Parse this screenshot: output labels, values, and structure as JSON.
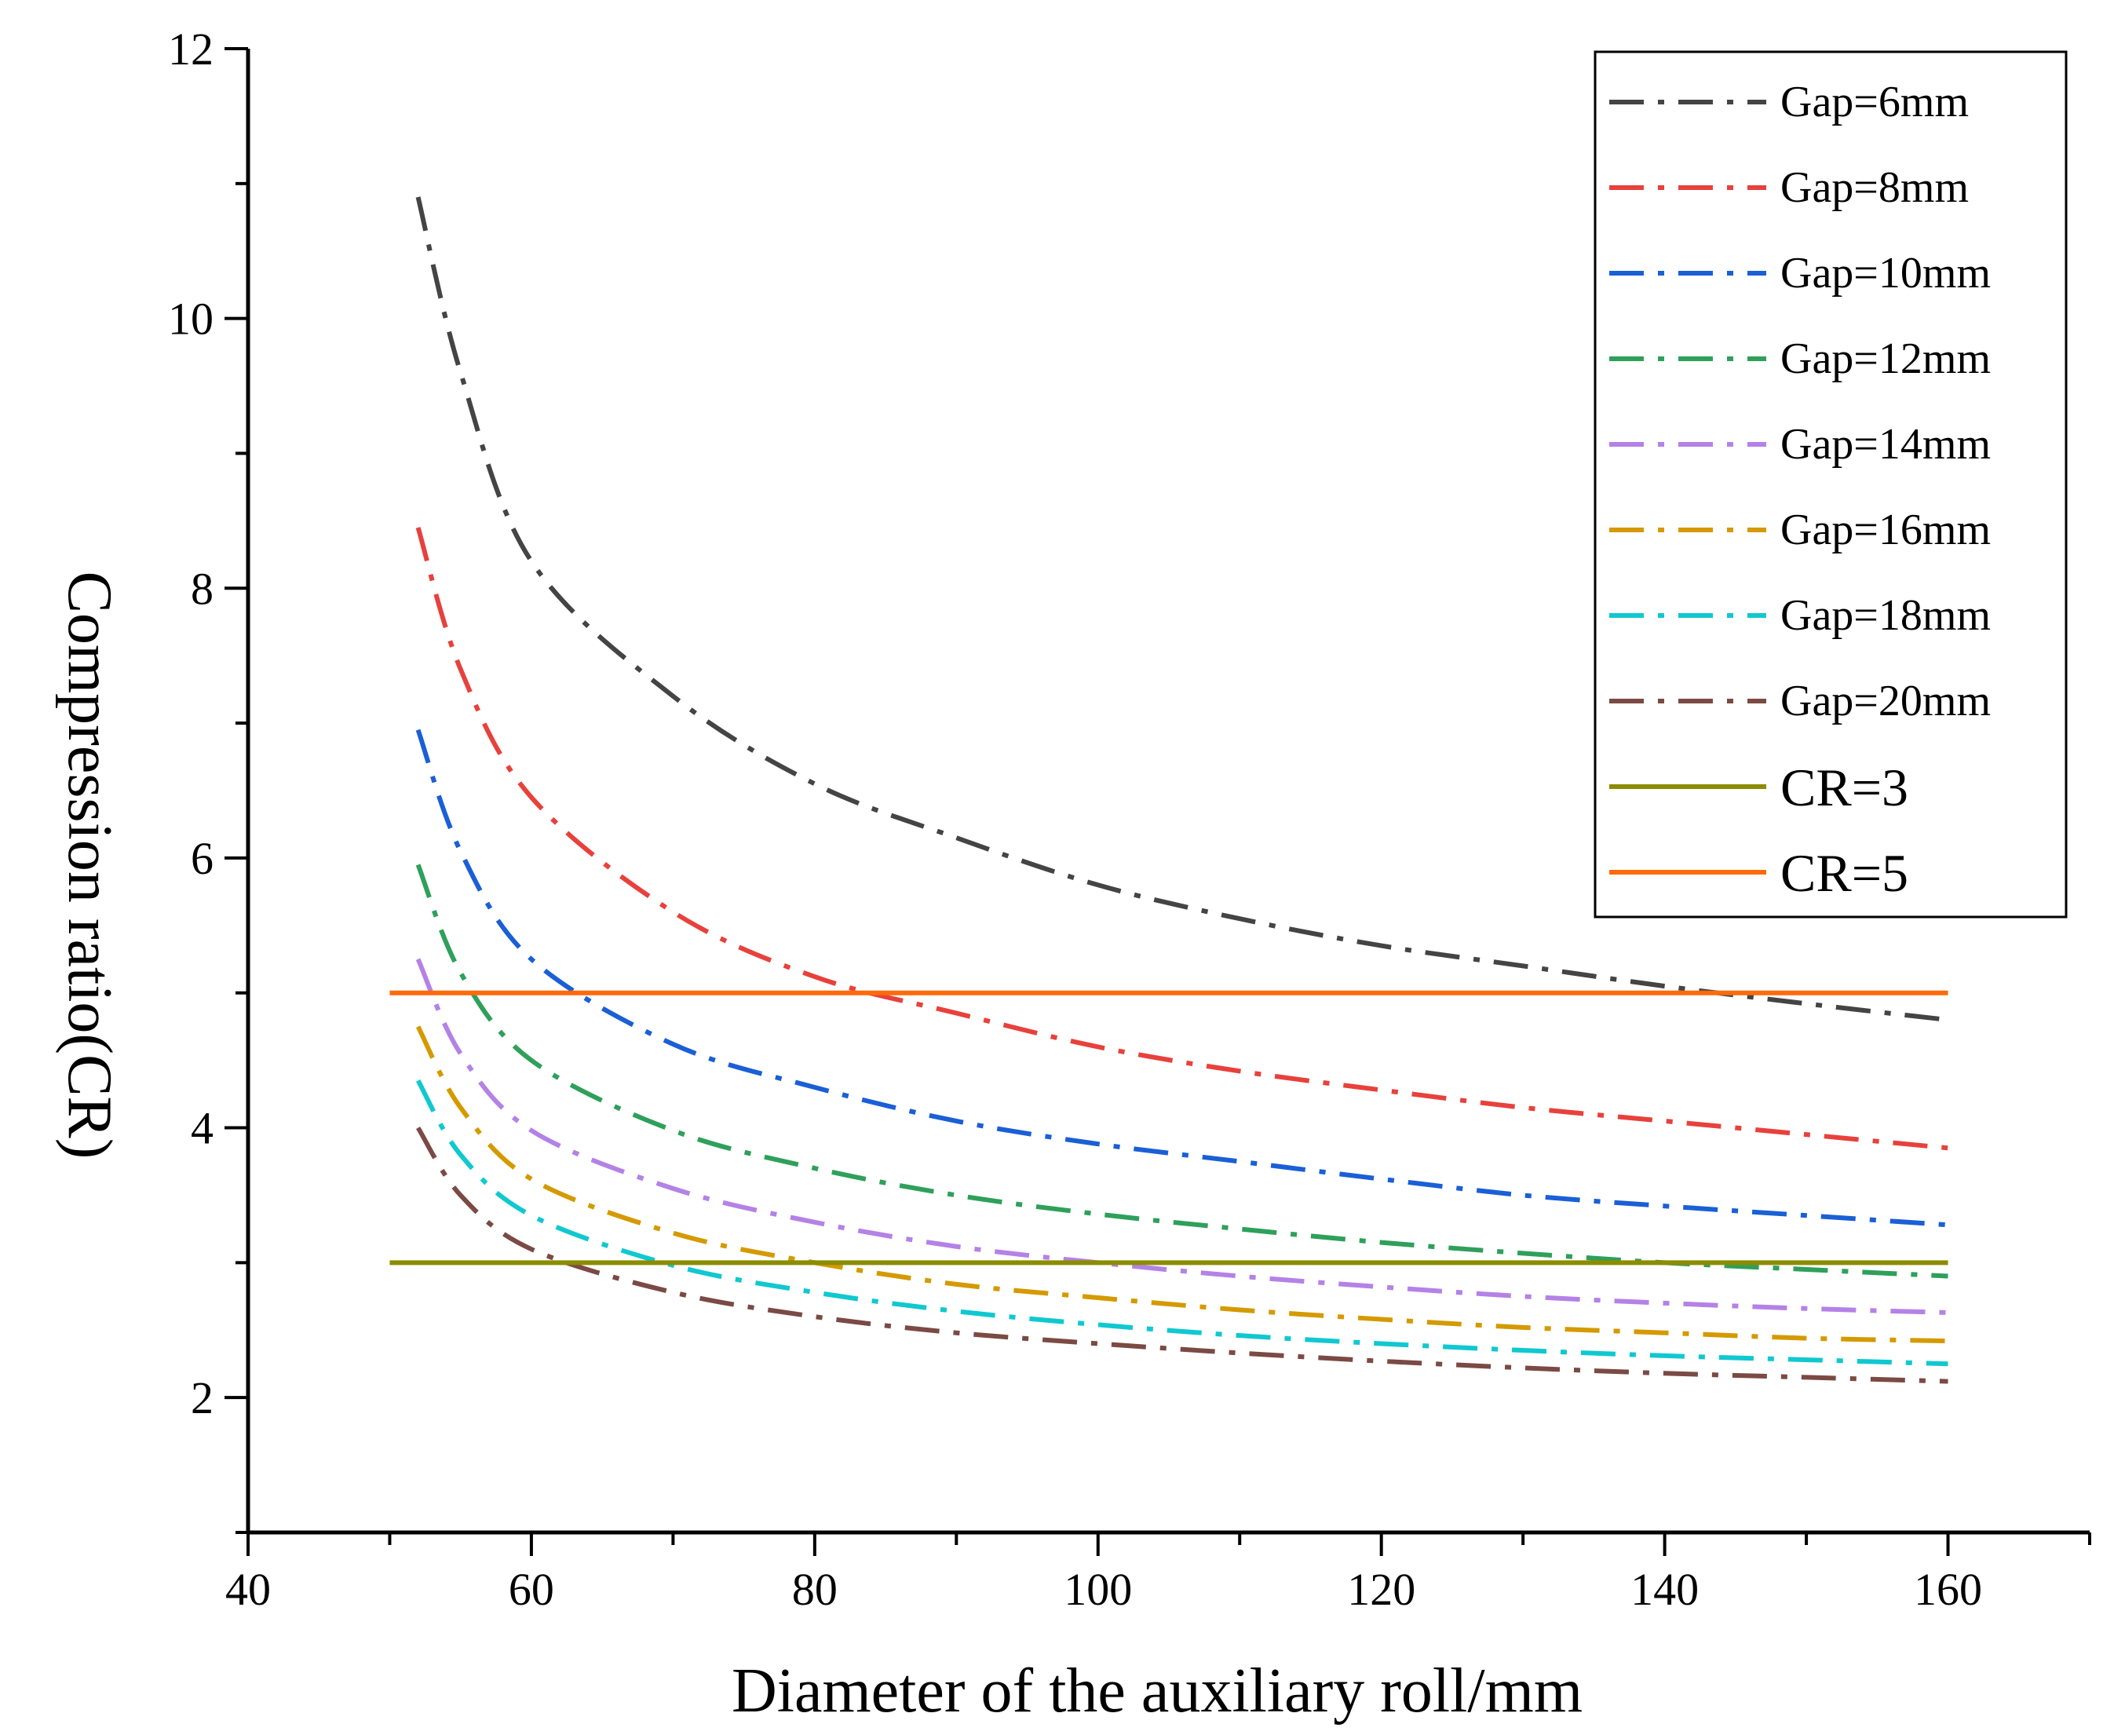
{
  "chart_data": {
    "type": "line",
    "title": "",
    "xlabel": "Diameter of the auxiliary roll/mm",
    "ylabel": "Compression ratio(CR)",
    "xlim": [
      40,
      170
    ],
    "ylim": [
      1,
      12
    ],
    "xticks": [
      40,
      60,
      80,
      100,
      120,
      140,
      160
    ],
    "yticks": [
      2,
      4,
      6,
      8,
      10,
      12
    ],
    "x_minor_step": 10,
    "y_minor_step": 1,
    "grid": false,
    "legend_position": "top-right",
    "x": [
      52,
      55,
      60,
      70,
      80,
      90,
      100,
      110,
      120,
      130,
      140,
      150,
      160
    ],
    "series": [
      {
        "name": "Gap=6mm",
        "color": "#444444",
        "style": "dashdot",
        "values": [
          10.9,
          9.6,
          8.2,
          7.2,
          6.55,
          6.15,
          5.8,
          5.55,
          5.35,
          5.2,
          5.05,
          4.92,
          4.8
        ]
      },
      {
        "name": "Gap=8mm",
        "color": "#e8413c",
        "style": "dashdot",
        "values": [
          8.45,
          7.4,
          6.45,
          5.6,
          5.12,
          4.85,
          4.6,
          4.42,
          4.28,
          4.15,
          4.05,
          3.95,
          3.85
        ]
      },
      {
        "name": "Gap=10mm",
        "color": "#1a5fd6",
        "style": "dashdot",
        "values": [
          6.95,
          6.05,
          5.25,
          4.62,
          4.3,
          4.05,
          3.88,
          3.75,
          3.62,
          3.5,
          3.42,
          3.35,
          3.28
        ]
      },
      {
        "name": "Gap=12mm",
        "color": "#2ea05a",
        "style": "dashdot",
        "values": [
          5.95,
          5.15,
          4.5,
          3.98,
          3.7,
          3.5,
          3.36,
          3.25,
          3.15,
          3.07,
          3.0,
          2.95,
          2.9
        ]
      },
      {
        "name": "Gap=14mm",
        "color": "#b482e6",
        "style": "dashdot",
        "values": [
          5.25,
          4.55,
          3.98,
          3.55,
          3.3,
          3.12,
          3.0,
          2.9,
          2.82,
          2.75,
          2.7,
          2.66,
          2.63
        ]
      },
      {
        "name": "Gap=16mm",
        "color": "#d49a00",
        "style": "dashdot",
        "values": [
          4.75,
          4.15,
          3.62,
          3.22,
          3.0,
          2.84,
          2.74,
          2.65,
          2.58,
          2.52,
          2.48,
          2.44,
          2.42
        ]
      },
      {
        "name": "Gap=18mm",
        "color": "#10c8d0",
        "style": "dashdot",
        "values": [
          4.35,
          3.8,
          3.35,
          2.98,
          2.78,
          2.64,
          2.54,
          2.46,
          2.4,
          2.35,
          2.31,
          2.28,
          2.25
        ]
      },
      {
        "name": "Gap=20mm",
        "color": "#7b4a44",
        "style": "dashdot",
        "values": [
          4.0,
          3.5,
          3.1,
          2.78,
          2.6,
          2.48,
          2.4,
          2.33,
          2.27,
          2.22,
          2.18,
          2.15,
          2.12
        ]
      }
    ],
    "reference_lines": [
      {
        "name": "CR=3",
        "y": 3,
        "x_start": 50,
        "x_end": 160,
        "color": "#8c8c00",
        "style": "solid"
      },
      {
        "name": "CR=5",
        "y": 5,
        "x_start": 50,
        "x_end": 160,
        "color": "#ff6a0a",
        "style": "solid"
      }
    ]
  }
}
